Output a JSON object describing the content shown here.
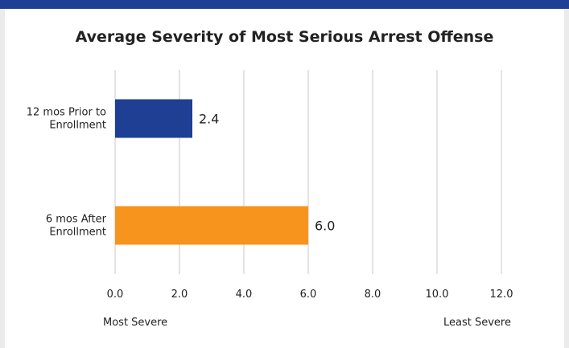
{
  "chart_data": {
    "type": "bar",
    "orientation": "horizontal",
    "title": "Average Severity of Most Serious Arrest Offense",
    "categories": [
      [
        "12 mos Prior to",
        "Enrollment"
      ],
      [
        "6 mos After",
        "Enrollment"
      ]
    ],
    "values": [
      2.4,
      6.0
    ],
    "value_labels": [
      "2.4",
      "6.0"
    ],
    "bar_colors": [
      "#1f3f94",
      "#f7941d"
    ],
    "xlim": [
      0,
      12
    ],
    "xticks": [
      0,
      2,
      4,
      6,
      8,
      10,
      12
    ],
    "xtick_labels": [
      "0.0",
      "2.0",
      "4.0",
      "6.0",
      "8.0",
      "10.0",
      "12.0"
    ],
    "grid": "vertical",
    "axis_notes": {
      "left": "Most Severe",
      "right": "Least Severe"
    }
  }
}
